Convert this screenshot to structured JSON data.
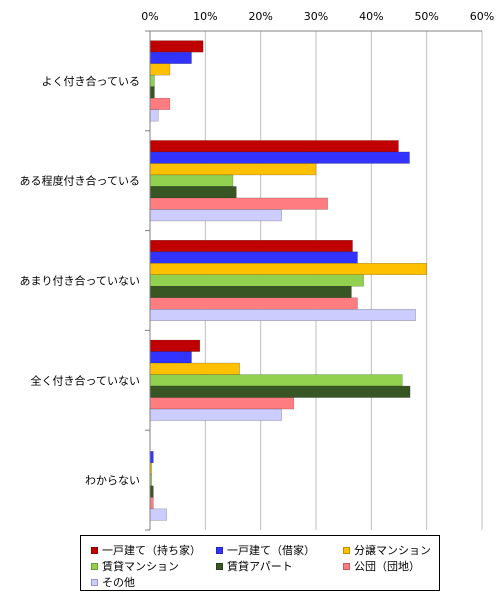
{
  "chart_data": {
    "type": "bar",
    "orientation": "horizontal",
    "categories": [
      "よく付き合っている",
      "ある程度付き合っている",
      "あまり付き合っていない",
      "全く付き合っていない",
      "わからない"
    ],
    "xlim": [
      0,
      60
    ],
    "x_ticks": [
      "0%",
      "10%",
      "20%",
      "30%",
      "40%",
      "50%",
      "60%"
    ],
    "x_axis_position": "top",
    "grid": "vertical",
    "legend_position": "bottom",
    "series": [
      {
        "name": "一戸建て（持ち家）",
        "color": "#c00000",
        "values": [
          9.6,
          44.9,
          36.6,
          9.0,
          0.0
        ]
      },
      {
        "name": "一戸建て（借家）",
        "color": "#3333ff",
        "values": [
          7.5,
          46.9,
          37.5,
          7.5,
          0.6
        ]
      },
      {
        "name": "分譲マンション",
        "color": "#ffc000",
        "values": [
          3.6,
          30.0,
          50.0,
          16.2,
          0.3
        ]
      },
      {
        "name": "賃貸マンション",
        "color": "#92d050",
        "values": [
          0.8,
          15.0,
          38.6,
          45.6,
          0.3
        ]
      },
      {
        "name": "賃貸アパート",
        "color": "#375623",
        "values": [
          0.8,
          15.6,
          36.4,
          47.0,
          0.6
        ]
      },
      {
        "name": "公団（団地）",
        "color": "#ff7c80",
        "values": [
          3.6,
          32.1,
          37.5,
          26.0,
          0.6
        ]
      },
      {
        "name": "その他",
        "color": "#ccccff",
        "values": [
          1.5,
          23.8,
          48.0,
          23.8,
          3.0
        ]
      }
    ]
  }
}
